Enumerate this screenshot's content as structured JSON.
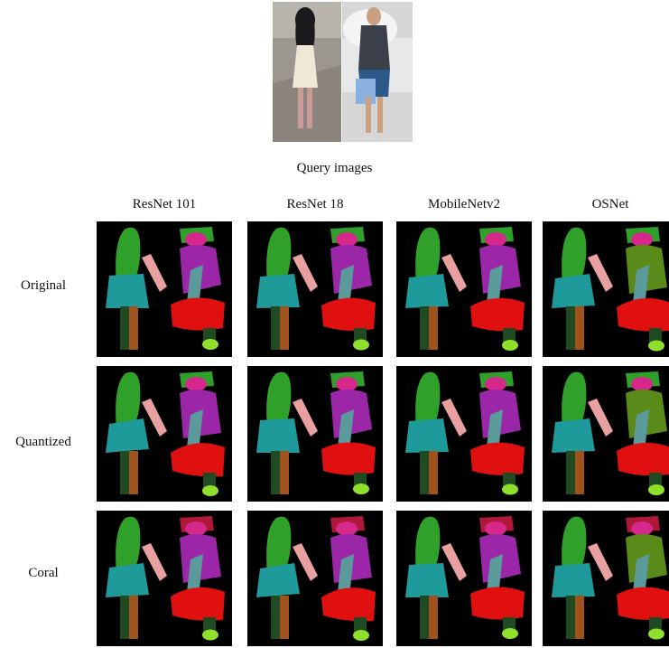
{
  "figure": {
    "query_caption": "Query images",
    "columns": [
      "ResNet 101",
      "ResNet 18",
      "MobileNetv2",
      "OSNet"
    ],
    "rows": [
      "Original",
      "Quantized",
      "Coral"
    ]
  },
  "legend_colors": {
    "background": "#000000",
    "hair": "#2fa02a",
    "upper_body_female": "#1f9a9a",
    "arm_female": "#e8a0a0",
    "legs_female": "#1f4a22",
    "skin_leg": "#a0521d",
    "upper_body_male": "#9b27a8",
    "head_male": "#d6288a",
    "bag_male": "#e01010",
    "arm_male": "#5a9a9a",
    "shoes": "#8fe02a"
  }
}
